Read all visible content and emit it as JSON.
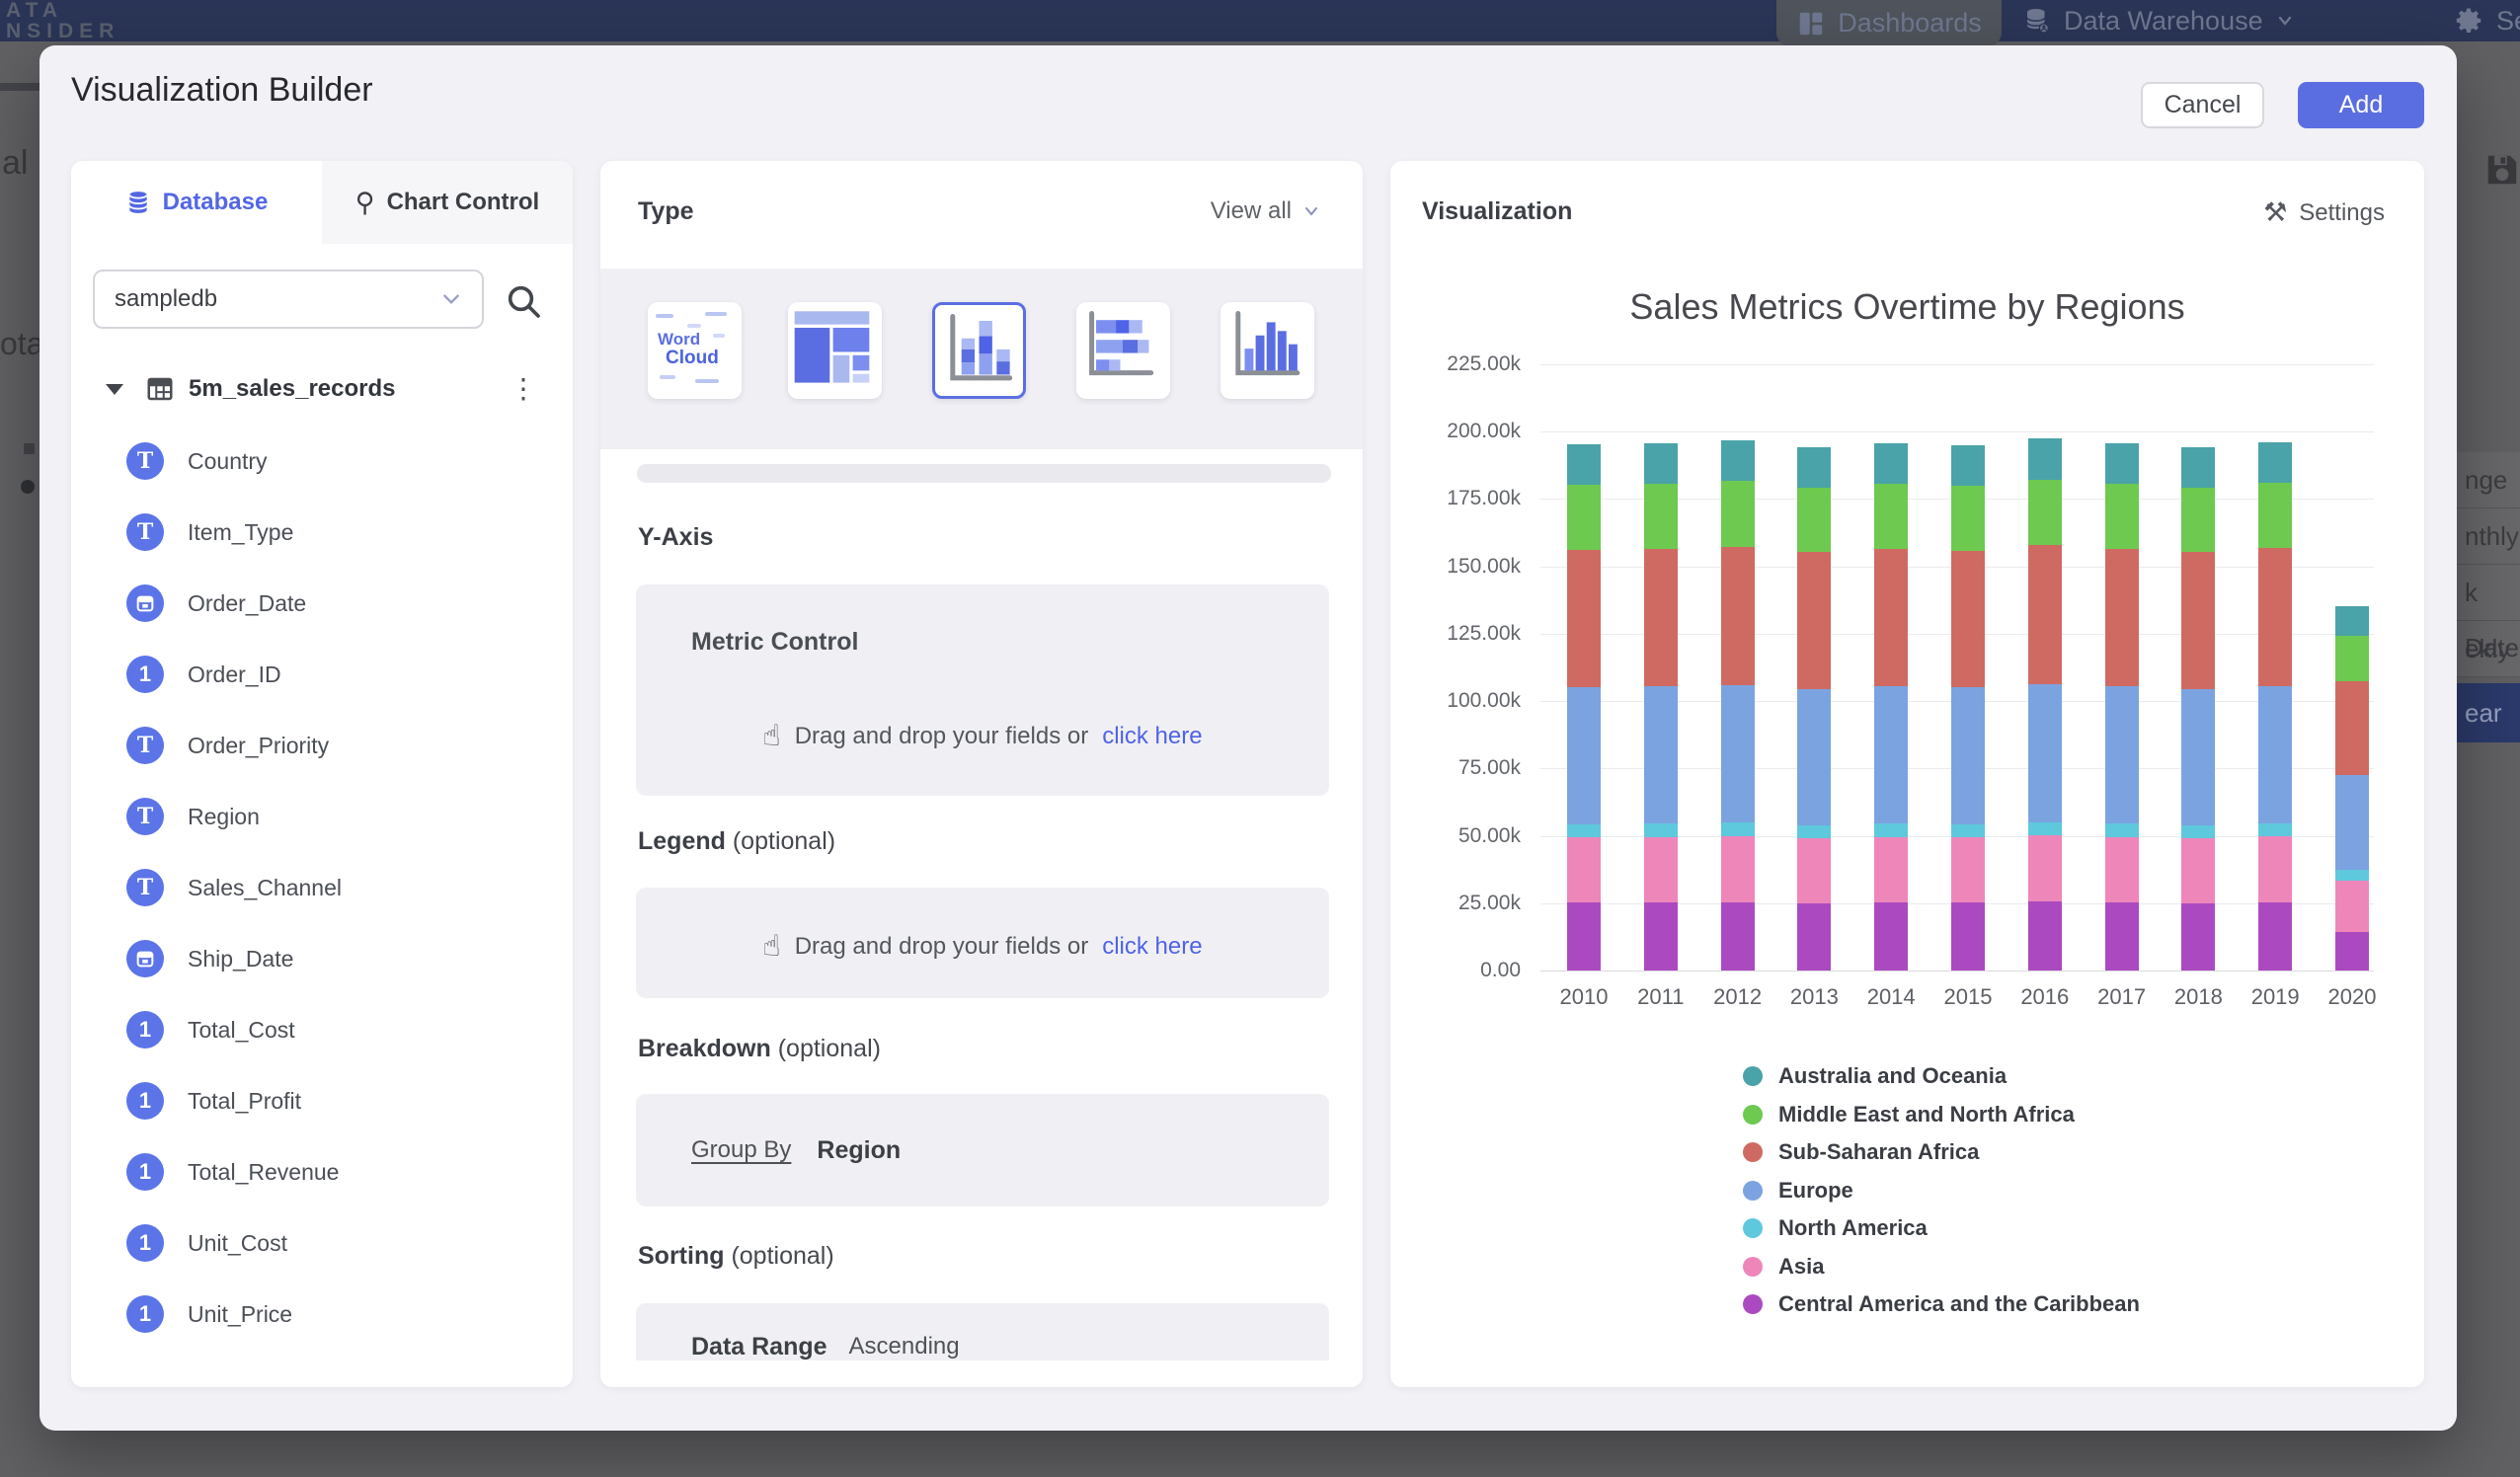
{
  "overlay": {
    "top_nav": {
      "brand_line1": "ATA",
      "brand_line2": "NSIDER",
      "items": [
        {
          "label": "Dashboards"
        },
        {
          "label": "Data Warehouse"
        },
        {
          "label": "Settings"
        }
      ]
    },
    "left_fragments": {
      "frag1": "al",
      "frag2": "ota"
    },
    "right_menu": {
      "items": [
        "nge",
        "nthly",
        "k Date",
        "ekly",
        "ear"
      ],
      "active_index": 4
    }
  },
  "modal": {
    "title": "Visualization Builder",
    "cancel_label": "Cancel",
    "add_label": "Add",
    "database_panel": {
      "tabs": [
        {
          "label": "Database",
          "active": true
        },
        {
          "label": "Chart Control",
          "active": false
        }
      ],
      "database_select": {
        "value": "sampledb"
      },
      "table": {
        "name": "5m_sales_records"
      },
      "fields": [
        {
          "name": "Country",
          "type": "text"
        },
        {
          "name": "Item_Type",
          "type": "text"
        },
        {
          "name": "Order_Date",
          "type": "date"
        },
        {
          "name": "Order_ID",
          "type": "number"
        },
        {
          "name": "Order_Priority",
          "type": "text"
        },
        {
          "name": "Region",
          "type": "text"
        },
        {
          "name": "Sales_Channel",
          "type": "text"
        },
        {
          "name": "Ship_Date",
          "type": "date"
        },
        {
          "name": "Total_Cost",
          "type": "number"
        },
        {
          "name": "Total_Profit",
          "type": "number"
        },
        {
          "name": "Total_Revenue",
          "type": "number"
        },
        {
          "name": "Unit_Cost",
          "type": "number"
        },
        {
          "name": "Unit_Price",
          "type": "number"
        }
      ]
    },
    "type_panel": {
      "title": "Type",
      "view_all_label": "View all",
      "chart_types": [
        "word-cloud",
        "treemap",
        "stacked-column",
        "stacked-bar",
        "column"
      ],
      "selected_type": "stacked-column",
      "word_cloud": {
        "line1": "Word",
        "line2": "Cloud"
      },
      "sections": {
        "y_axis": {
          "title": "Y-Axis",
          "box_title": "Metric Control",
          "drop_text": "Drag and drop your fields or",
          "drop_link": "click here"
        },
        "legend": {
          "title": "Legend",
          "suffix": "(optional)",
          "drop_text": "Drag and drop your fields or",
          "drop_link": "click here"
        },
        "breakdown": {
          "title": "Breakdown",
          "suffix": "(optional)",
          "group_by_label": "Group By",
          "group_by_value": "Region"
        },
        "sorting": {
          "title": "Sorting",
          "suffix": "(optional)",
          "cut_label": "Data Range",
          "cut_value": "Ascending"
        }
      }
    },
    "visualization_panel": {
      "title": "Visualization",
      "settings_label": "Settings"
    }
  },
  "chart_data": {
    "type": "bar",
    "stacked": true,
    "title": "Sales Metrics Overtime by Regions",
    "xlabel": "",
    "ylabel": "",
    "units": "thousands",
    "ylim": [
      0,
      225
    ],
    "grid": true,
    "legend_position": "bottom-left",
    "y_ticks": [
      "225.00k",
      "200.00k",
      "175.00k",
      "150.00k",
      "125.00k",
      "100.00k",
      "75.00k",
      "50.00k",
      "25.00k",
      "0.00"
    ],
    "categories": [
      "2010",
      "2011",
      "2012",
      "2013",
      "2014",
      "2015",
      "2016",
      "2017",
      "2018",
      "2019",
      "2020"
    ],
    "series": [
      {
        "name": "Central America and the Caribbean",
        "color": "#ab4ac0",
        "values": [
          25.2,
          25.4,
          25.3,
          25.1,
          25.3,
          25.2,
          25.5,
          25.3,
          25.1,
          25.4,
          14.4
        ]
      },
      {
        "name": "Asia",
        "color": "#ef86ba",
        "values": [
          24.3,
          24.2,
          24.5,
          24.1,
          24.3,
          24.2,
          24.6,
          24.3,
          24.1,
          24.4,
          19.0
        ]
      },
      {
        "name": "North America",
        "color": "#5ec8dc",
        "values": [
          4.9,
          4.9,
          5.0,
          4.8,
          4.9,
          4.9,
          5.0,
          4.9,
          4.8,
          4.9,
          3.8
        ]
      },
      {
        "name": "Europe",
        "color": "#7ba3e0",
        "values": [
          50.8,
          50.9,
          51.2,
          50.6,
          50.9,
          50.7,
          51.3,
          50.9,
          50.6,
          51.0,
          35.4
        ]
      },
      {
        "name": "Sub-Saharan Africa",
        "color": "#cf6a62",
        "values": [
          50.9,
          51.0,
          51.3,
          50.7,
          51.0,
          50.8,
          51.4,
          51.0,
          50.7,
          51.1,
          34.9
        ]
      },
      {
        "name": "Middle East and North Africa",
        "color": "#6dc950",
        "values": [
          24.1,
          24.2,
          24.3,
          24.0,
          24.2,
          24.1,
          24.4,
          24.2,
          24.0,
          24.2,
          16.8
        ]
      },
      {
        "name": "Australia and Oceania",
        "color": "#4aa3a8",
        "values": [
          15.1,
          15.2,
          15.3,
          15.0,
          15.2,
          15.1,
          15.3,
          15.2,
          15.0,
          15.2,
          10.8
        ]
      }
    ],
    "legend": [
      {
        "label": "Australia and Oceania",
        "color": "#4aa3a8"
      },
      {
        "label": "Middle East and North Africa",
        "color": "#6dc950"
      },
      {
        "label": "Sub-Saharan Africa",
        "color": "#cf6a62"
      },
      {
        "label": "Europe",
        "color": "#7ba3e0"
      },
      {
        "label": "North America",
        "color": "#5ec8dc"
      },
      {
        "label": "Asia",
        "color": "#ef86ba"
      },
      {
        "label": "Central America and the Caribbean",
        "color": "#ab4ac0"
      }
    ]
  }
}
